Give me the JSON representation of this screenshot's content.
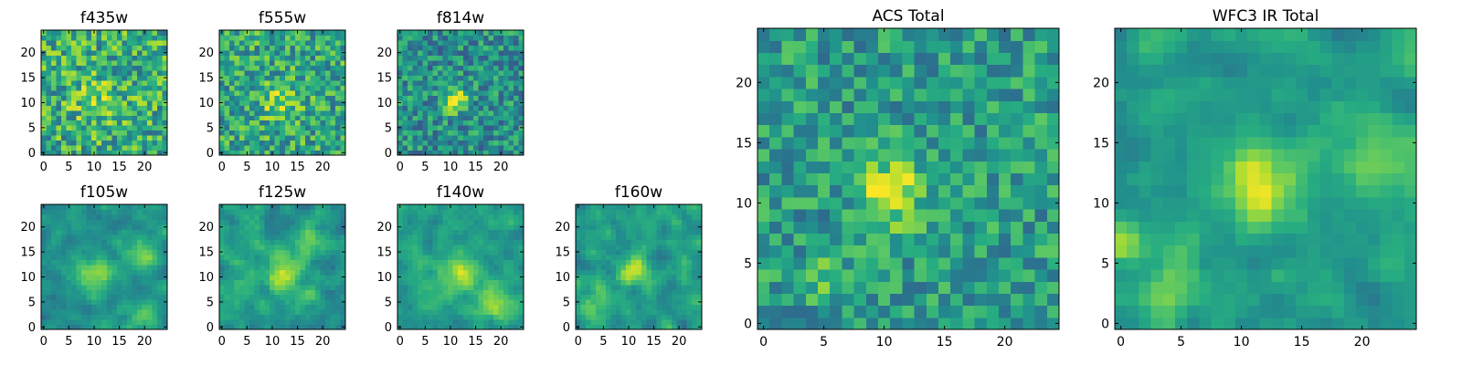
{
  "chart_data": [
    {
      "type": "heatmap",
      "title": "f435w",
      "xlim": [
        0,
        25
      ],
      "ylim": [
        0,
        25
      ],
      "xticks": [
        "0",
        "5",
        "10",
        "15",
        "20"
      ],
      "yticks": [
        "0",
        "5",
        "10",
        "15",
        "20"
      ],
      "grid_size": 25,
      "colormap": "viridis",
      "features": [
        {
          "x": 11,
          "y": 11,
          "sigma": 3.5,
          "amp": 0.15
        }
      ],
      "noise": 0.55,
      "base": 0.62,
      "seed": 11
    },
    {
      "type": "heatmap",
      "title": "f555w",
      "xlim": [
        0,
        25
      ],
      "ylim": [
        0,
        25
      ],
      "xticks": [
        "0",
        "5",
        "10",
        "15",
        "20"
      ],
      "yticks": [
        "0",
        "5",
        "10",
        "15",
        "20"
      ],
      "grid_size": 25,
      "colormap": "viridis",
      "features": [
        {
          "x": 12,
          "y": 11,
          "sigma": 2.5,
          "amp": 0.25
        }
      ],
      "noise": 0.5,
      "base": 0.6,
      "seed": 23
    },
    {
      "type": "heatmap",
      "title": "f814w",
      "xlim": [
        0,
        25
      ],
      "ylim": [
        0,
        25
      ],
      "xticks": [
        "0",
        "5",
        "10",
        "15",
        "20"
      ],
      "yticks": [
        "0",
        "5",
        "10",
        "15",
        "20"
      ],
      "grid_size": 25,
      "colormap": "viridis",
      "features": [
        {
          "x": 11.5,
          "y": 11,
          "sigma": 1.6,
          "amp": 0.5
        }
      ],
      "noise": 0.45,
      "base": 0.5,
      "seed": 37
    },
    {
      "type": "heatmap",
      "title": "f105w",
      "xlim": [
        0,
        25
      ],
      "ylim": [
        0,
        25
      ],
      "xticks": [
        "0",
        "5",
        "10",
        "15",
        "20"
      ],
      "yticks": [
        "0",
        "5",
        "10",
        "15",
        "20"
      ],
      "grid_size": 25,
      "colormap": "viridis",
      "features": [
        {
          "x": 11,
          "y": 11,
          "sigma": 3,
          "amp": 0.3
        },
        {
          "x": 20,
          "y": 15,
          "sigma": 2,
          "amp": 0.3
        },
        {
          "x": 20,
          "y": 3,
          "sigma": 2,
          "amp": 0.2
        }
      ],
      "noise": 0.3,
      "base": 0.5,
      "seed": 41,
      "smooth": true
    },
    {
      "type": "heatmap",
      "title": "f125w",
      "xlim": [
        0,
        25
      ],
      "ylim": [
        0,
        25
      ],
      "xticks": [
        "0",
        "5",
        "10",
        "15",
        "20"
      ],
      "yticks": [
        "0",
        "5",
        "10",
        "15",
        "20"
      ],
      "grid_size": 25,
      "colormap": "viridis",
      "features": [
        {
          "x": 13,
          "y": 11,
          "sigma": 2.5,
          "amp": 0.35
        },
        {
          "x": 18,
          "y": 18,
          "sigma": 2,
          "amp": 0.2
        }
      ],
      "noise": 0.35,
      "base": 0.55,
      "seed": 53,
      "smooth": true
    },
    {
      "type": "heatmap",
      "title": "f140w",
      "xlim": [
        0,
        25
      ],
      "ylim": [
        0,
        25
      ],
      "xticks": [
        "0",
        "5",
        "10",
        "15",
        "20"
      ],
      "yticks": [
        "0",
        "5",
        "10",
        "15",
        "20"
      ],
      "grid_size": 25,
      "colormap": "viridis",
      "features": [
        {
          "x": 12,
          "y": 11,
          "sigma": 3,
          "amp": 0.3
        },
        {
          "x": 20,
          "y": 5,
          "sigma": 2.5,
          "amp": 0.3
        },
        {
          "x": 3,
          "y": 15,
          "sigma": 2,
          "amp": 0.2
        }
      ],
      "noise": 0.3,
      "base": 0.55,
      "seed": 67,
      "smooth": true
    },
    {
      "type": "heatmap",
      "title": "f160w",
      "xlim": [
        0,
        25
      ],
      "ylim": [
        0,
        25
      ],
      "xticks": [
        "0",
        "5",
        "10",
        "15",
        "20"
      ],
      "yticks": [
        "0",
        "5",
        "10",
        "15",
        "20"
      ],
      "grid_size": 25,
      "colormap": "viridis",
      "features": [
        {
          "x": 11.5,
          "y": 12,
          "sigma": 2,
          "amp": 0.4
        },
        {
          "x": 4,
          "y": 5,
          "sigma": 2.5,
          "amp": 0.25
        }
      ],
      "noise": 0.35,
      "base": 0.55,
      "seed": 79,
      "smooth": true
    },
    {
      "type": "heatmap",
      "title": "ACS Total",
      "xlim": [
        0,
        25
      ],
      "ylim": [
        0,
        25
      ],
      "xticks": [
        "0",
        "5",
        "10",
        "15",
        "20"
      ],
      "yticks": [
        "0",
        "5",
        "10",
        "15",
        "20"
      ],
      "grid_size": 25,
      "colormap": "viridis",
      "features": [
        {
          "x": 11,
          "y": 11.5,
          "sigma": 1.8,
          "amp": 0.45
        },
        {
          "x": 6,
          "y": 4,
          "sigma": 1.2,
          "amp": 0.2
        }
      ],
      "noise": 0.4,
      "base": 0.55,
      "seed": 97
    },
    {
      "type": "heatmap",
      "title": "WFC3 IR Total",
      "xlim": [
        0,
        25
      ],
      "ylim": [
        0,
        25
      ],
      "xticks": [
        "0",
        "5",
        "10",
        "15",
        "20"
      ],
      "yticks": [
        "0",
        "5",
        "10",
        "15",
        "20"
      ],
      "grid_size": 25,
      "colormap": "viridis",
      "features": [
        {
          "x": 12,
          "y": 12,
          "sigma": 2.2,
          "amp": 0.4
        },
        {
          "x": 0.5,
          "y": 7,
          "sigma": 1.2,
          "amp": 0.3
        },
        {
          "x": 22,
          "y": 15,
          "sigma": 2.5,
          "amp": 0.2
        },
        {
          "x": 5,
          "y": 4,
          "sigma": 2,
          "amp": 0.2
        }
      ],
      "noise": 0.3,
      "base": 0.55,
      "seed": 113,
      "smooth": true
    }
  ]
}
